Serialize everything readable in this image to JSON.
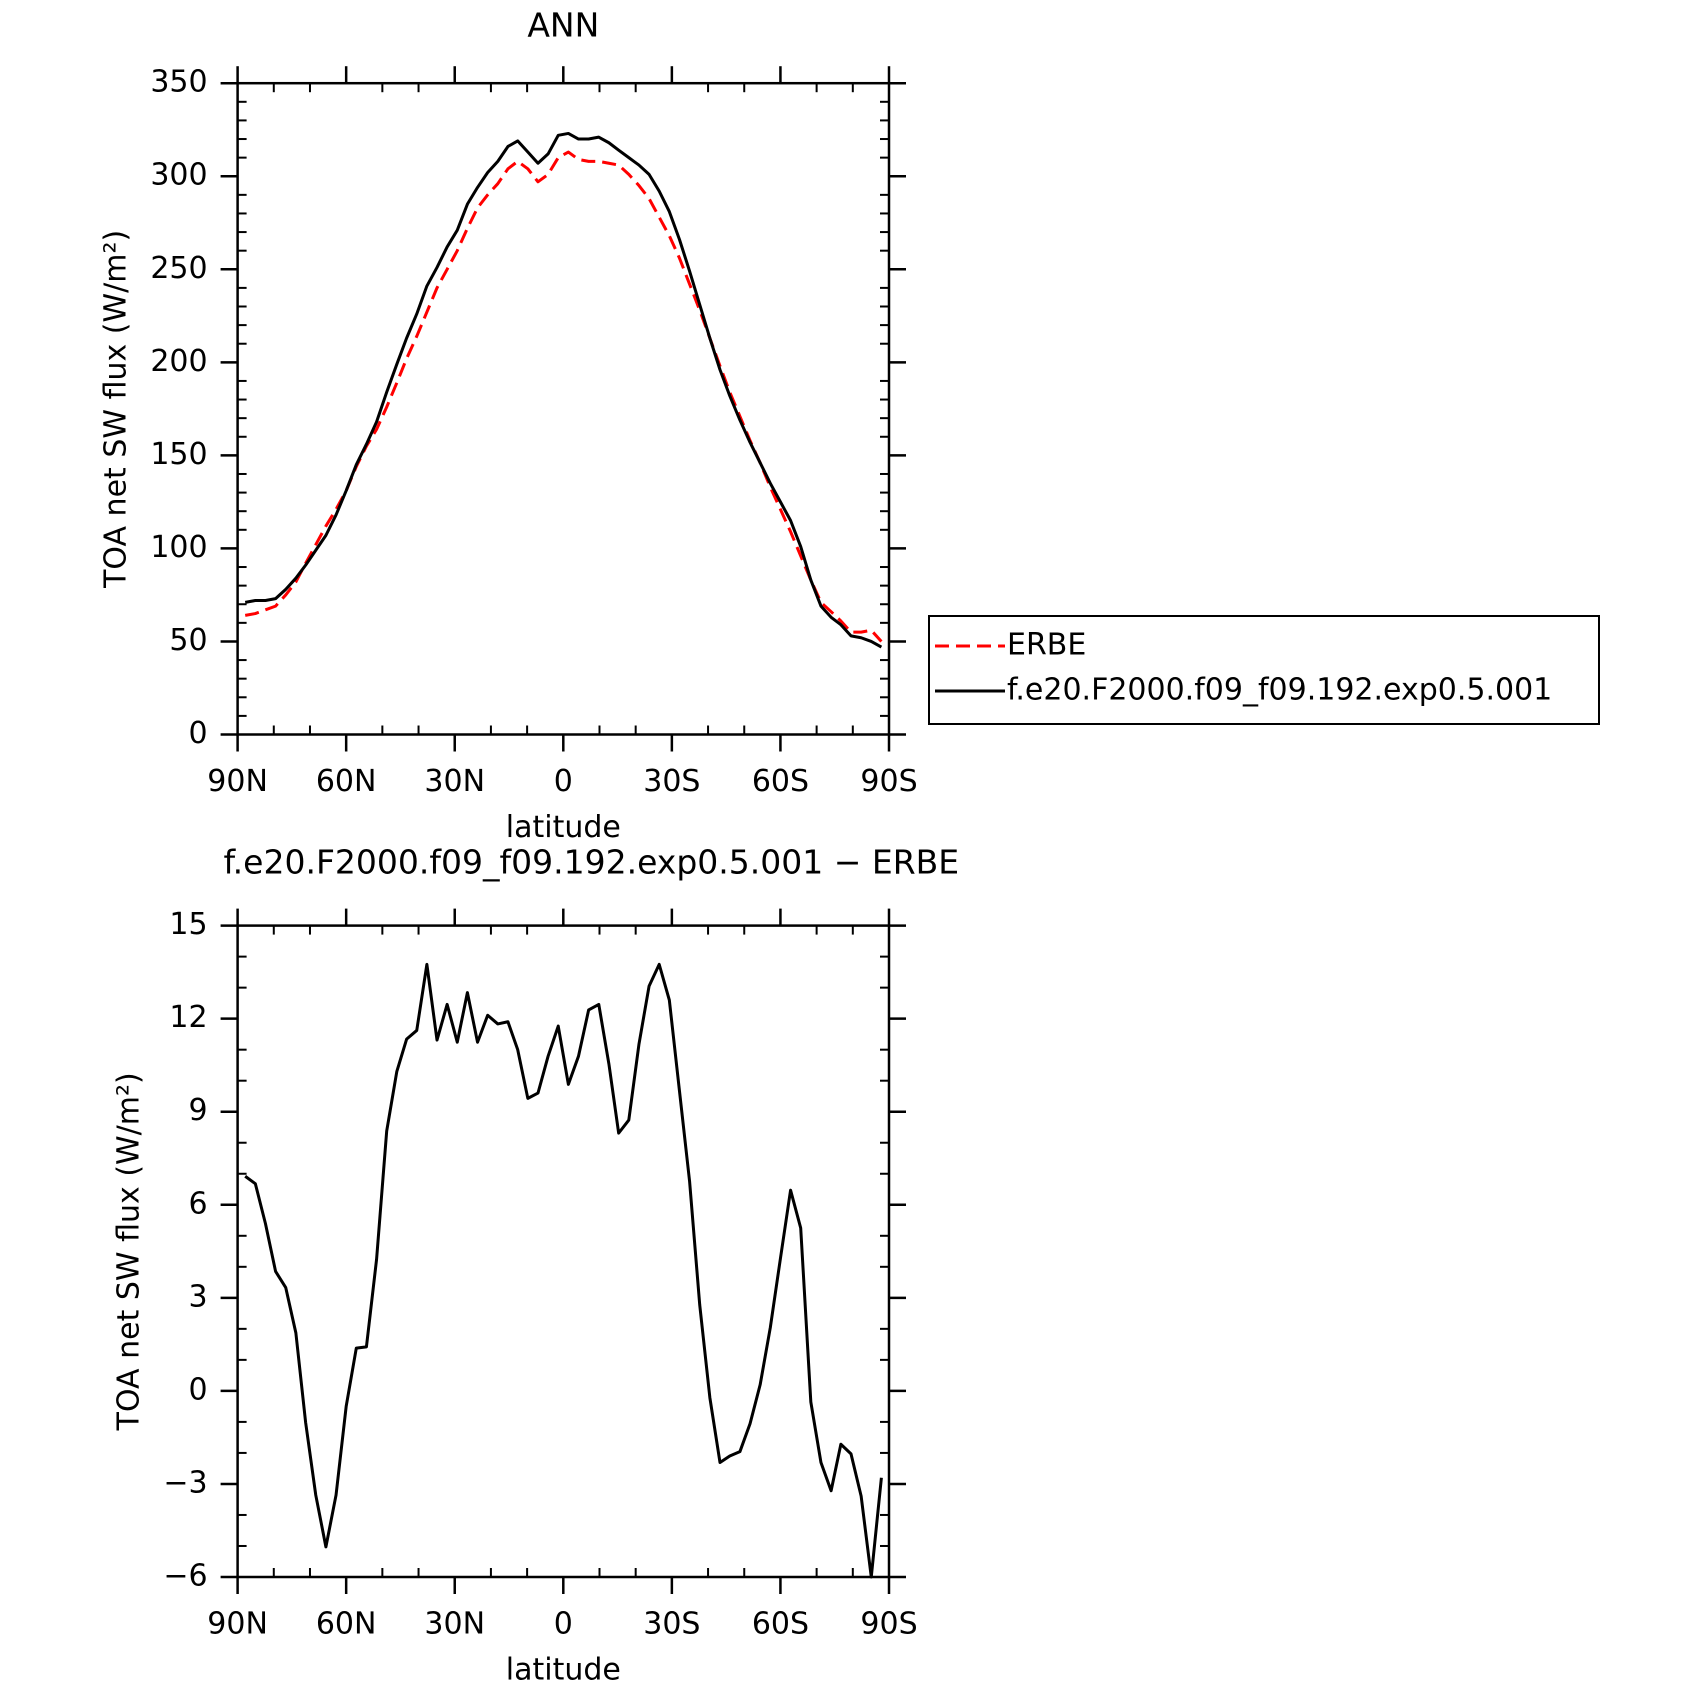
{
  "chart_data": [
    {
      "type": "line",
      "title": "ANN",
      "xlabel": "latitude",
      "ylabel": "TOA net SW flux (W/m²)",
      "x": [
        87.9,
        85.1,
        82.3,
        79.5,
        76.7,
        73.9,
        71.2,
        68.4,
        65.6,
        62.8,
        60.0,
        57.2,
        54.4,
        51.6,
        48.8,
        46.0,
        43.3,
        40.5,
        37.7,
        34.9,
        32.1,
        29.3,
        26.5,
        23.7,
        20.9,
        18.1,
        15.3,
        12.6,
        9.8,
        7.0,
        4.2,
        1.4,
        -1.4,
        -4.2,
        -7.0,
        -9.8,
        -12.6,
        -15.3,
        -18.1,
        -20.9,
        -23.7,
        -26.5,
        -29.3,
        -32.1,
        -34.9,
        -37.7,
        -40.5,
        -43.3,
        -46.0,
        -48.8,
        -51.6,
        -54.4,
        -57.2,
        -60.0,
        -62.8,
        -65.6,
        -68.4,
        -71.2,
        -74.0,
        -76.7,
        -79.5,
        -82.3,
        -85.1,
        -87.9
      ],
      "series": [
        {
          "name": "ERBE",
          "color": "#ff0000",
          "dash": true,
          "values": [
            64,
            65,
            67,
            69,
            75,
            82,
            92,
            102,
            112,
            121,
            131,
            144,
            155,
            164,
            176,
            189,
            202,
            214,
            227,
            240,
            250,
            260,
            272,
            283,
            290,
            296,
            304,
            308,
            304,
            297,
            301,
            310,
            313,
            309,
            308,
            308,
            307,
            306,
            301,
            295,
            288,
            278,
            268,
            256,
            242,
            228,
            213,
            198,
            184,
            171,
            158,
            146,
            133,
            121,
            109,
            96,
            83,
            71,
            66,
            61,
            55,
            55,
            56,
            50
          ]
        },
        {
          "name": "f.e20.F2000.f09_f09.192.exp0.5.001",
          "color": "#000000",
          "dash": false,
          "values": [
            71,
            72,
            72,
            73,
            78,
            84,
            91,
            99,
            107,
            118,
            131,
            145,
            156,
            168,
            184,
            199,
            213,
            226,
            241,
            251,
            262,
            271,
            285,
            294,
            302,
            308,
            316,
            319,
            313,
            307,
            312,
            322,
            323,
            320,
            320,
            321,
            318,
            314,
            310,
            306,
            301,
            292,
            281,
            266,
            249,
            231,
            213,
            196,
            182,
            169,
            157,
            146,
            135,
            125,
            115,
            101,
            83,
            69,
            63,
            59,
            53,
            52,
            50,
            47
          ]
        }
      ],
      "xlim": [
        90,
        -90
      ],
      "xticks": [
        {
          "value": 90,
          "label": "90N"
        },
        {
          "value": 60,
          "label": "60N"
        },
        {
          "value": 30,
          "label": "30N"
        },
        0,
        {
          "value": -30,
          "label": "30S"
        },
        {
          "value": -60,
          "label": "60S"
        },
        {
          "value": -90,
          "label": "90S"
        }
      ],
      "xminor_step": 10,
      "ylim": [
        0,
        350
      ],
      "yticks": [
        0,
        50,
        100,
        150,
        200,
        250,
        300,
        350
      ],
      "yminor_step": 10,
      "legend": "right"
    },
    {
      "type": "line",
      "title": "f.e20.F2000.f09_f09.192.exp0.5.001 − ERBE",
      "xlabel": "latitude",
      "ylabel": "TOA net SW flux (W/m²)",
      "x": [
        87.9,
        85.1,
        82.3,
        79.5,
        76.7,
        73.9,
        71.2,
        68.4,
        65.6,
        62.8,
        60.0,
        57.2,
        54.4,
        51.6,
        48.8,
        46.0,
        43.3,
        40.5,
        37.7,
        34.9,
        32.1,
        29.3,
        26.5,
        23.7,
        20.9,
        18.1,
        15.3,
        12.6,
        9.8,
        7.0,
        4.2,
        1.4,
        -1.4,
        -4.2,
        -7.0,
        -9.8,
        -12.6,
        -15.3,
        -18.1,
        -20.9,
        -23.7,
        -26.5,
        -29.3,
        -32.1,
        -34.9,
        -37.7,
        -40.5,
        -43.3,
        -46.0,
        -48.8,
        -51.6,
        -54.4,
        -57.2,
        -60.0,
        -62.8,
        -65.6,
        -68.4,
        -71.2,
        -74.0,
        -76.7,
        -79.5,
        -82.3,
        -85.1,
        -87.9
      ],
      "values": [
        6.92,
        6.68,
        5.39,
        3.85,
        3.33,
        1.87,
        -1.02,
        -3.36,
        -5.03,
        -3.36,
        -0.5,
        1.38,
        1.42,
        4.24,
        8.38,
        10.3,
        11.34,
        11.62,
        13.75,
        11.31,
        12.46,
        11.24,
        12.84,
        11.24,
        12.11,
        11.83,
        11.9,
        11.0,
        9.43,
        9.6,
        10.79,
        11.76,
        9.88,
        10.79,
        12.28,
        12.46,
        10.54,
        8.31,
        8.73,
        11.17,
        13.05,
        13.75,
        12.6,
        9.67,
        6.75,
        2.77,
        -0.22,
        -2.31,
        -2.1,
        -1.96,
        -1.06,
        0.2,
        2.04,
        4.27,
        6.47,
        5.25,
        -0.36,
        -2.31,
        -3.22,
        -1.72,
        -2.03,
        -3.39,
        -6.0,
        -2.8
      ],
      "color": "#000000",
      "xlim": [
        90,
        -90
      ],
      "xticks": [
        {
          "value": 90,
          "label": "90N"
        },
        {
          "value": 60,
          "label": "60N"
        },
        {
          "value": 30,
          "label": "30N"
        },
        0,
        {
          "value": -30,
          "label": "30S"
        },
        {
          "value": -60,
          "label": "60S"
        },
        {
          "value": -90,
          "label": "90S"
        }
      ],
      "xminor_step": 10,
      "ylim": [
        -6,
        15
      ],
      "yticks": [
        {
          "value": -6,
          "label": "−6"
        },
        {
          "value": -3,
          "label": "−3"
        },
        0,
        3,
        6,
        9,
        12,
        15
      ],
      "yminor_step": 1
    }
  ]
}
